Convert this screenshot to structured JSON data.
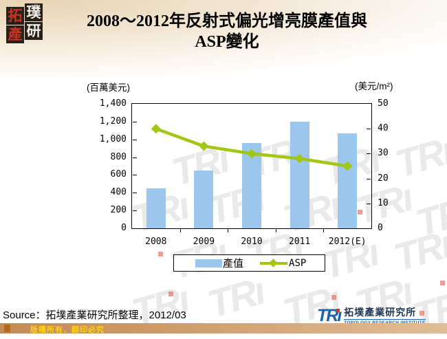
{
  "page": {
    "title_line1": "2008～2012年反射式偏光增亮膜產值與",
    "title_line2": "ASP變化",
    "source": "Source：拓墣產業研究所整理，2012/03",
    "footer_copyright": "版權所有．翻印必究"
  },
  "corner_logo": {
    "char1": "拓",
    "char2": "璞",
    "char3": "產",
    "char4": "研"
  },
  "tri_logo": {
    "acronym_stem": "TR",
    "name_zh": "拓墣產業研究所",
    "name_en": "TOPOLOGY RESEARCH INSTITUTE"
  },
  "watermark_text": "TR",
  "chart_data": {
    "type": "bar",
    "title": "2008～2012年反射式偏光增亮膜產值與ASP變化",
    "categories": [
      "2008",
      "2009",
      "2010",
      "2011",
      "2012(E)"
    ],
    "series": [
      {
        "name": "產值",
        "type": "bar",
        "axis": "left",
        "values": [
          450,
          650,
          960,
          1200,
          1070
        ],
        "color": "#9bc7ef"
      },
      {
        "name": "ASP",
        "type": "line",
        "axis": "right",
        "values": [
          40,
          33,
          30,
          28,
          25
        ],
        "color": "#a2c614"
      }
    ],
    "left_axis": {
      "caption": "(百萬美元)",
      "min": 0,
      "max": 1400,
      "step": 200,
      "ticks": [
        "0",
        "200",
        "400",
        "600",
        "800",
        "1,000",
        "1,200",
        "1,400"
      ]
    },
    "right_axis": {
      "caption": "(美元/m²)",
      "min": 0,
      "max": 50,
      "step": 10,
      "ticks": [
        "0",
        "10",
        "20",
        "30",
        "40",
        "50"
      ]
    },
    "grid": false,
    "legend_position": "bottom"
  }
}
